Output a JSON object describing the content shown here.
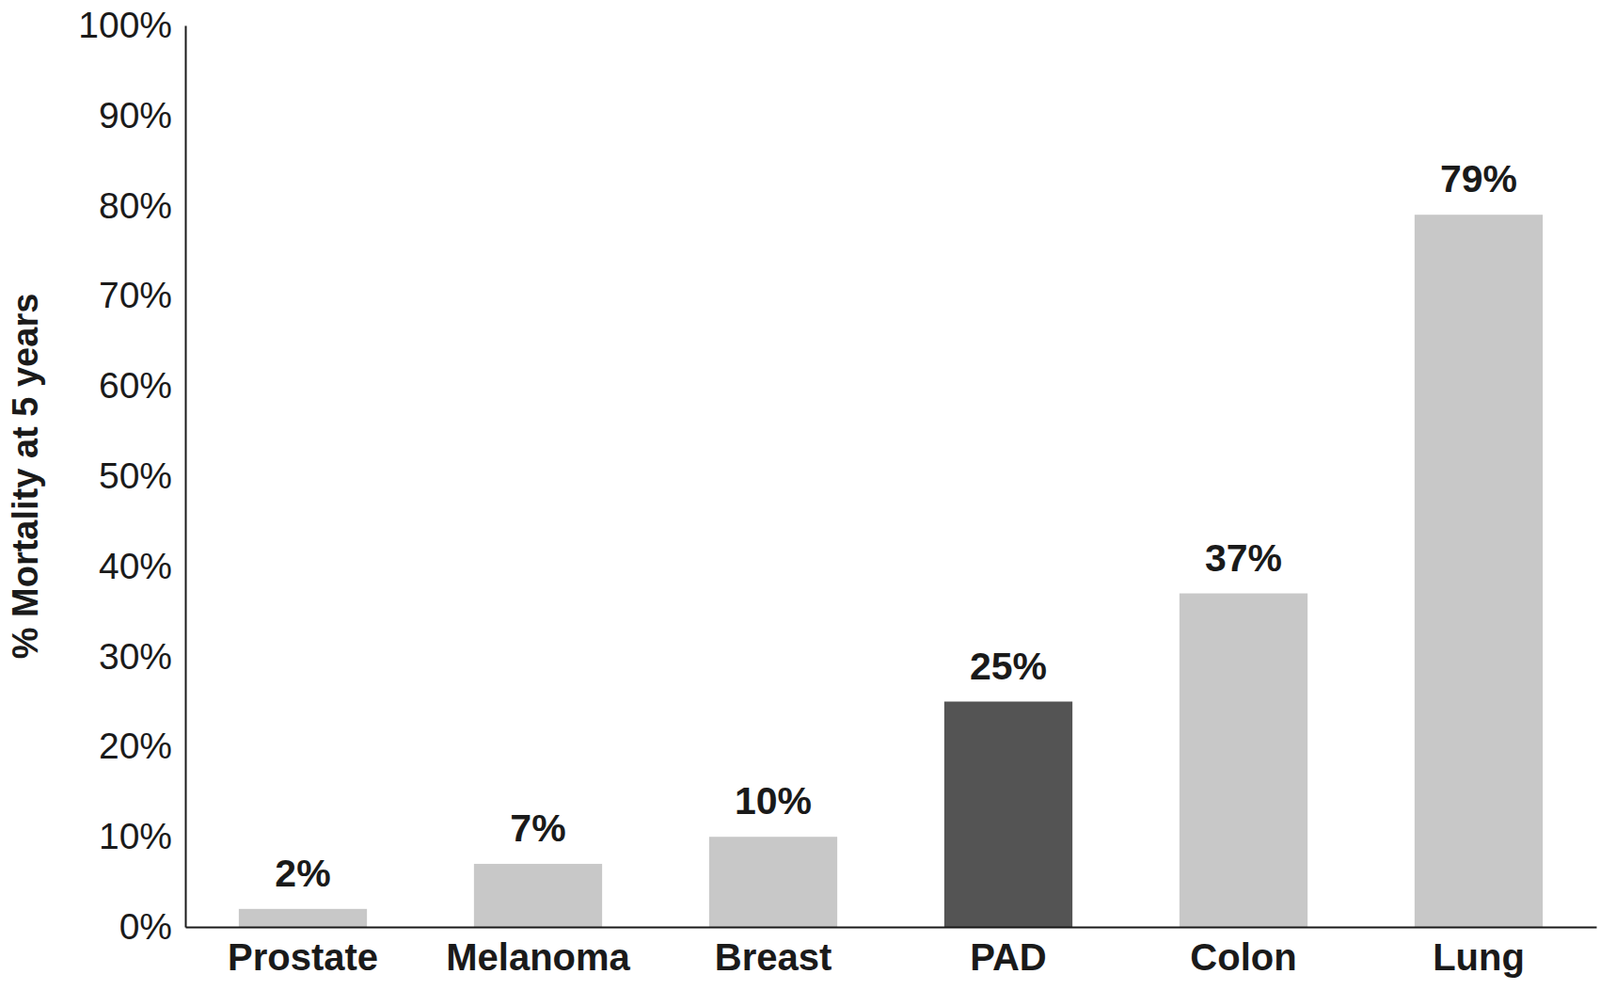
{
  "chart_data": {
    "type": "bar",
    "y_label": "% Mortality at 5 years",
    "categories": [
      "Prostate",
      "Melanoma",
      "Breast",
      "PAD",
      "Colon",
      "Lung"
    ],
    "values": [
      2,
      7,
      10,
      25,
      37,
      79
    ],
    "value_labels": [
      "2%",
      "7%",
      "10%",
      "25%",
      "37%",
      "79%"
    ],
    "colors": [
      "#c8c8c8",
      "#c8c8c8",
      "#c8c8c8",
      "#545454",
      "#c8c8c8",
      "#c8c8c8"
    ],
    "ylim": [
      0,
      100
    ],
    "yticks": [
      {
        "value": 0,
        "label": "0%"
      },
      {
        "value": 10,
        "label": "10%"
      },
      {
        "value": 20,
        "label": "20%"
      },
      {
        "value": 30,
        "label": "30%"
      },
      {
        "value": 40,
        "label": "40%"
      },
      {
        "value": 50,
        "label": "50%"
      },
      {
        "value": 60,
        "label": "60%"
      },
      {
        "value": 70,
        "label": "70%"
      },
      {
        "value": 80,
        "label": "80%"
      },
      {
        "value": 90,
        "label": "90%"
      },
      {
        "value": 100,
        "label": "100%"
      }
    ],
    "grid": false,
    "data_labels": true
  }
}
